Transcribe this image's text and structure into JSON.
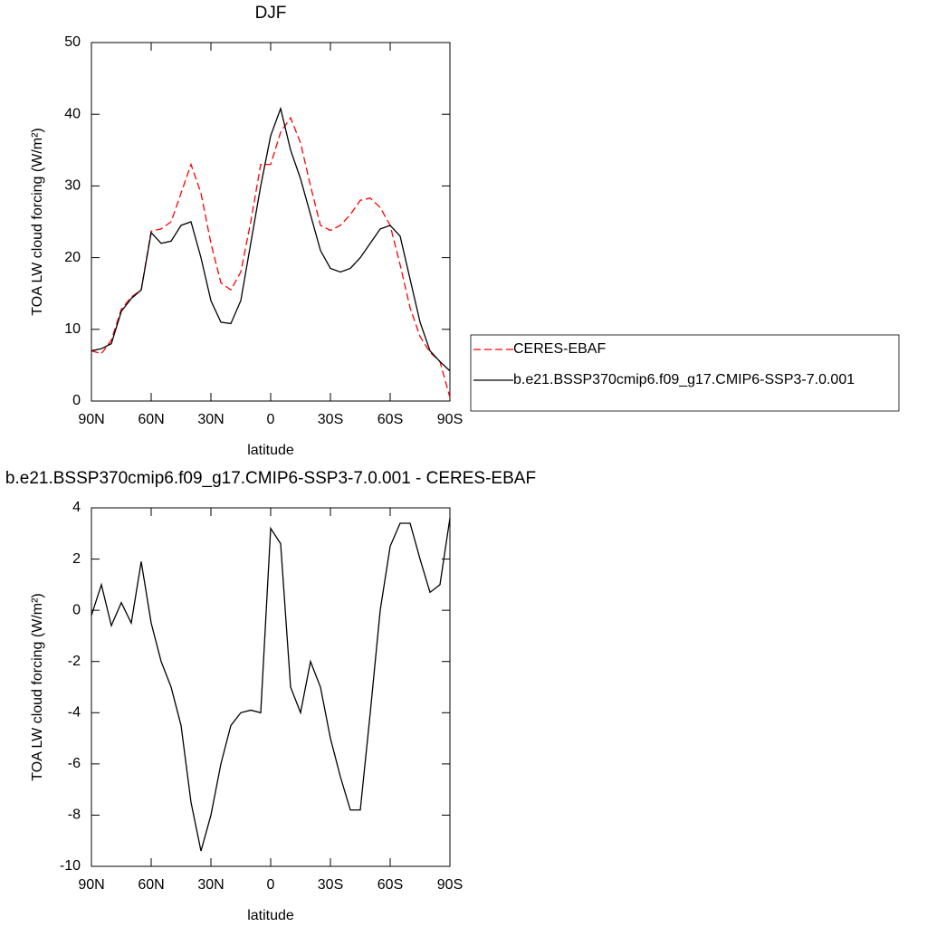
{
  "chart_data": [
    {
      "type": "line",
      "title": "DJF",
      "x_label": "latitude",
      "y_label": "TOA LW cloud forcing (W/m²)",
      "x": [
        90,
        85,
        80,
        75,
        70,
        65,
        60,
        55,
        50,
        45,
        40,
        35,
        30,
        25,
        20,
        15,
        10,
        5,
        0,
        -5,
        -10,
        -15,
        -20,
        -25,
        -30,
        -35,
        -40,
        -45,
        -50,
        -55,
        -60,
        -65,
        -70,
        -75,
        -80,
        -85,
        -90
      ],
      "series": [
        {
          "name": "CERES-EBAF",
          "color": "#ff0000",
          "linestyle": "dashed",
          "values": [
            7.0,
            6.6,
            8.5,
            12.8,
            14.5,
            15.5,
            23.7,
            24,
            25,
            29,
            33,
            29,
            22,
            16.5,
            15.5,
            18,
            25,
            33,
            33,
            37.5,
            39.5,
            36,
            30,
            24.5,
            23.8,
            24.5,
            26,
            28,
            28.3,
            27,
            24.5,
            19,
            13,
            9,
            6.8,
            5.5,
            0.5
          ]
        },
        {
          "name": "b.e21.BSSP370cmip6.f09_g17.CMIP6-SSP3-7.0.001",
          "color": "#000000",
          "linestyle": "solid",
          "values": [
            7.0,
            7.3,
            8.0,
            12.5,
            14.3,
            15.5,
            23.5,
            22,
            22.3,
            24.5,
            25,
            20,
            14,
            11,
            10.8,
            14,
            22,
            30,
            37,
            40.8,
            35,
            31,
            26,
            21,
            18.5,
            18,
            18.5,
            20,
            22,
            24,
            24.5,
            23,
            17,
            11,
            7,
            5.5,
            4.2
          ]
        }
      ],
      "xlim": [
        90,
        -90
      ],
      "xticks": [
        {
          "value": 90,
          "label": "90N"
        },
        {
          "value": 60,
          "label": "60N"
        },
        {
          "value": 30,
          "label": "30N"
        },
        0,
        {
          "value": -30,
          "label": "30S"
        },
        {
          "value": -60,
          "label": "60S"
        },
        {
          "value": -90,
          "label": "90S"
        }
      ],
      "ylim": [
        0,
        50
      ],
      "yticks": [
        0,
        10,
        20,
        30,
        40,
        50
      ],
      "legend": "right"
    },
    {
      "type": "line",
      "title": "b.e21.BSSP370cmip6.f09_g17.CMIP6-SSP3-7.0.001 - CERES-EBAF",
      "x_label": "latitude",
      "y_label": "TOA LW cloud forcing (W/m²)",
      "x": [
        90,
        85,
        80,
        75,
        70,
        65,
        60,
        55,
        50,
        45,
        40,
        35,
        30,
        25,
        20,
        15,
        10,
        5,
        0,
        -5,
        -10,
        -15,
        -20,
        -25,
        -30,
        -35,
        -40,
        -45,
        -50,
        -55,
        -60,
        -65,
        -70,
        -75,
        -80,
        -85,
        -90
      ],
      "color": "#000000",
      "values": [
        -0.2,
        1.0,
        -0.6,
        0.3,
        -0.5,
        1.9,
        -0.5,
        -2.0,
        -3.0,
        -4.5,
        -7.5,
        -9.4,
        -8.0,
        -6.0,
        -4.5,
        -4.0,
        -3.9,
        -4.0,
        3.2,
        2.6,
        -3.0,
        -4.0,
        -2.0,
        -3.0,
        -5.0,
        -6.5,
        -7.8,
        -7.8,
        -4.0,
        0,
        2.5,
        3.4,
        3.4,
        2.0,
        0.7,
        1.0,
        3.6
      ],
      "xlim": [
        90,
        -90
      ],
      "xticks": [
        {
          "value": 90,
          "label": "90N"
        },
        {
          "value": 60,
          "label": "60N"
        },
        {
          "value": 30,
          "label": "30N"
        },
        0,
        {
          "value": -30,
          "label": "30S"
        },
        {
          "value": -60,
          "label": "60S"
        },
        {
          "value": -90,
          "label": "90S"
        }
      ],
      "ylim": [
        -10,
        4
      ],
      "yticks": [
        -10,
        -8,
        -6,
        -4,
        -2,
        0,
        2,
        4
      ]
    }
  ]
}
